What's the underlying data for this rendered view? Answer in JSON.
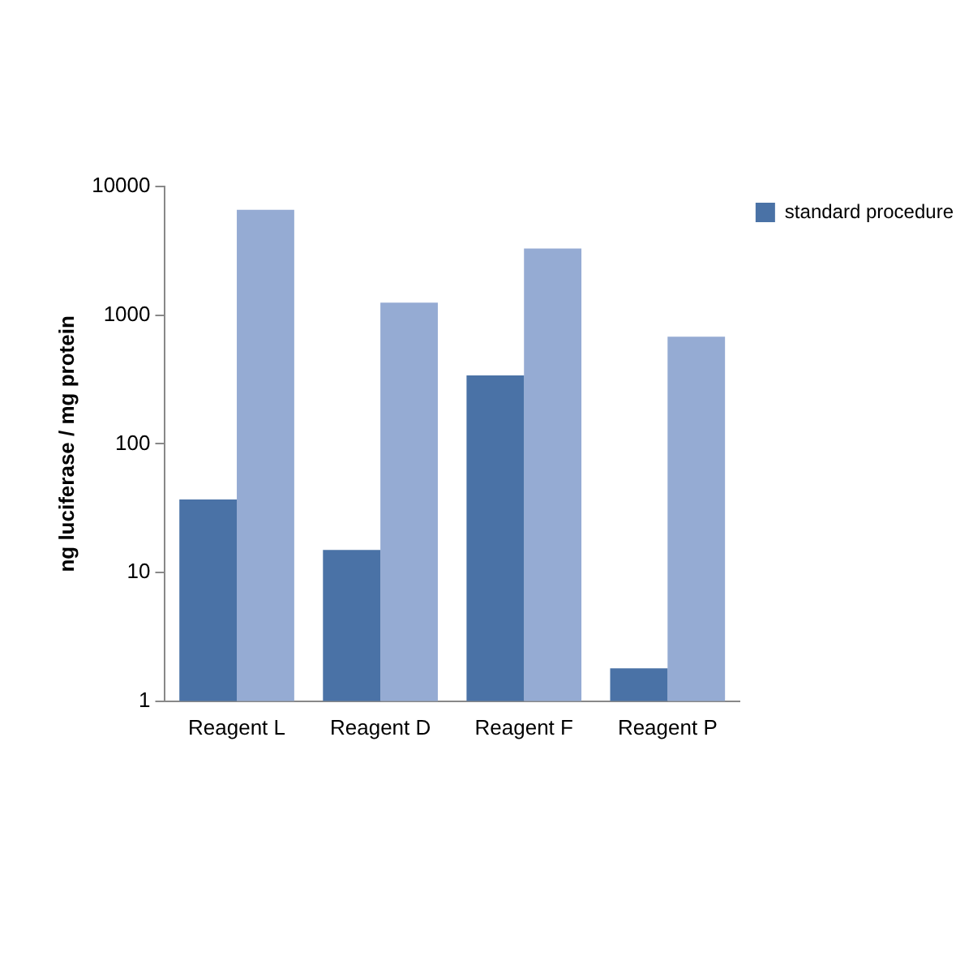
{
  "chart_data": {
    "type": "bar",
    "ylabel": "ng luciferase / mg protein",
    "categories": [
      "Reagent L",
      "Reagent D",
      "Reagent F",
      "Reagent P"
    ],
    "series": [
      {
        "name": "standard procedure",
        "color": "#4a72a6",
        "values": [
          37,
          15,
          340,
          1.8
        ]
      },
      {
        "color": "#95abd3",
        "values": [
          6600,
          1250,
          3300,
          680
        ]
      }
    ],
    "log": "y",
    "ylim": [
      1,
      10000
    ],
    "yticks": [
      1,
      10,
      100,
      1000,
      10000
    ],
    "grid": false,
    "legend": "right"
  }
}
